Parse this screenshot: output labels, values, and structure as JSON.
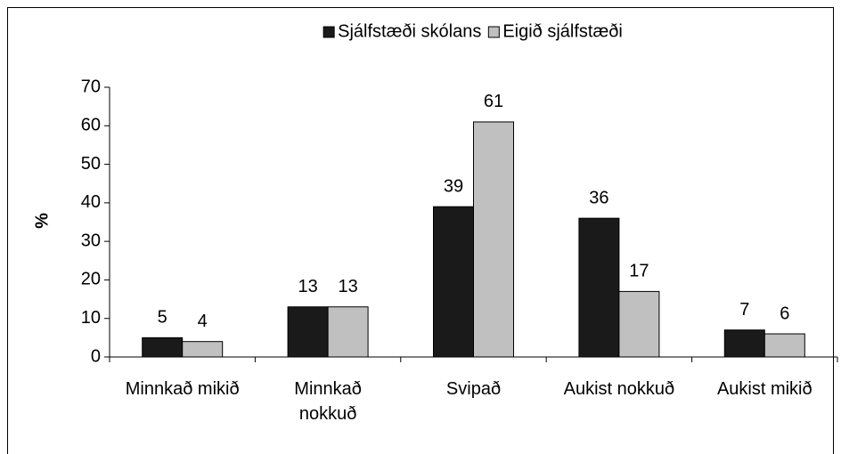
{
  "chart_data": {
    "type": "bar",
    "y_label": "%",
    "categories": [
      "Minnkað mikið",
      "Minnkað nokkuð",
      "Svipað",
      "Aukist nokkuð",
      "Aukist mikið"
    ],
    "series": [
      {
        "name": "Sjálfstæði skólans",
        "color": "#1a1a1a",
        "values": [
          5,
          13,
          39,
          36,
          7
        ]
      },
      {
        "name": "Eigið sjálfstæði",
        "color": "#c0c0c0",
        "values": [
          4,
          13,
          61,
          17,
          6
        ]
      }
    ],
    "ylim": [
      0,
      70
    ],
    "yticks": [
      0,
      10,
      20,
      30,
      40,
      50,
      60,
      70
    ],
    "legend": "top"
  }
}
